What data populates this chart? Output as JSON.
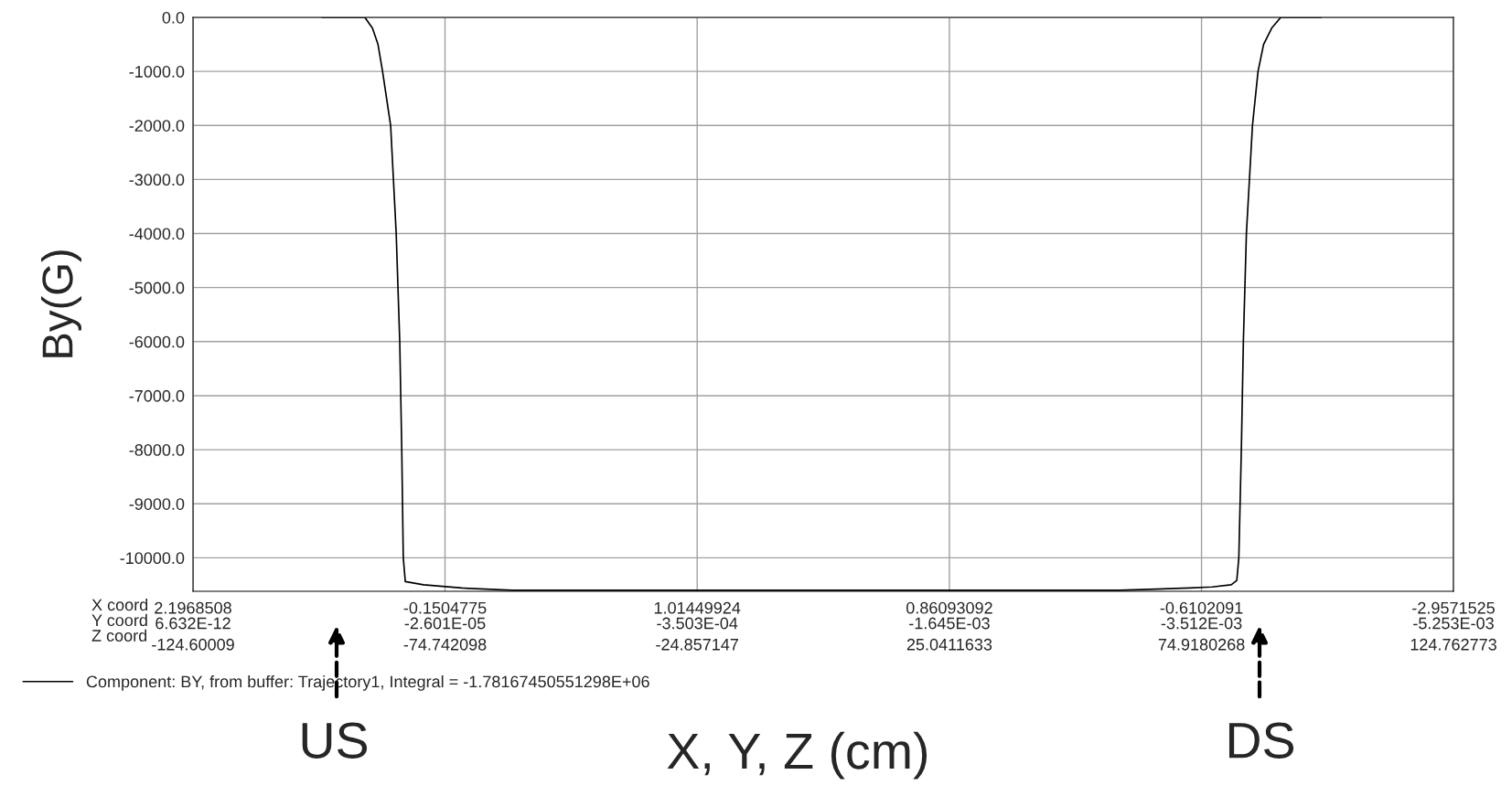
{
  "chart_data": {
    "type": "line",
    "xlabel": "X, Y, Z (cm)",
    "ylabel": "By(G)",
    "annotations": [
      "X coord\nY coord\nZ coord",
      "2.1968508\n6.632E-12",
      "-0.1504775\n-2.601E-05",
      "1.01449924\n-3.503E-04",
      "0.86093092\n-1.645E-03",
      "-0.6102091\n-3.512E-03",
      "-2.9571525\n-5.253E-03",
      "US",
      "DS"
    ],
    "x": [
      -99.1,
      -90.6,
      -89.1,
      -88.0,
      -87.1,
      -85.5,
      -84.4,
      -83.7,
      -83.3,
      -83.0,
      -82.6,
      -79.0,
      -71.4,
      -61.4,
      58.6,
      72.5,
      77.0,
      80.8,
      81.9,
      82.3,
      82.8,
      83.2,
      83.8,
      85.0,
      86.1,
      87.2,
      88.8,
      90.6,
      98.6
    ],
    "series": [
      {
        "name": "Component: BY, from buffer: Trajectory1, Integral = -1.78167450551298E+06",
        "color": "#000000",
        "values": [
          0,
          0,
          -200,
          -500,
          -1000,
          -2000,
          -4000,
          -6000,
          -8000,
          -10000,
          -10440,
          -10500,
          -10560,
          -10600,
          -10600,
          -10560,
          -10540,
          -10500,
          -10420,
          -10000,
          -8000,
          -6000,
          -4000,
          -2000,
          -1000,
          -500,
          -200,
          0,
          0
        ]
      }
    ],
    "xlim": [
      -124.60009,
      124.762773
    ],
    "xticks": [
      -124.60009,
      -74.742098,
      -24.857147,
      25.0411633,
      74.9180268,
      124.762773
    ],
    "ylim": [
      -10620,
      0
    ],
    "yticks": [
      {
        "value": 0,
        "label": "0.0"
      },
      {
        "value": -1000,
        "label": "-1000.0"
      },
      {
        "value": -2000,
        "label": "-2000.0"
      },
      {
        "value": -3000,
        "label": "-3000.0"
      },
      {
        "value": -4000,
        "label": "-4000.0"
      },
      {
        "value": -5000,
        "label": "-5000.0"
      },
      {
        "value": -6000,
        "label": "-6000.0"
      },
      {
        "value": -7000,
        "label": "-7000.0"
      },
      {
        "value": -8000,
        "label": "-8000.0"
      },
      {
        "value": -9000,
        "label": "-9000.0"
      },
      {
        "value": -10000,
        "label": "-10000.0"
      }
    ],
    "grid": true,
    "legend": "bottom left",
    "line_style": "solid",
    "marker": "none"
  }
}
